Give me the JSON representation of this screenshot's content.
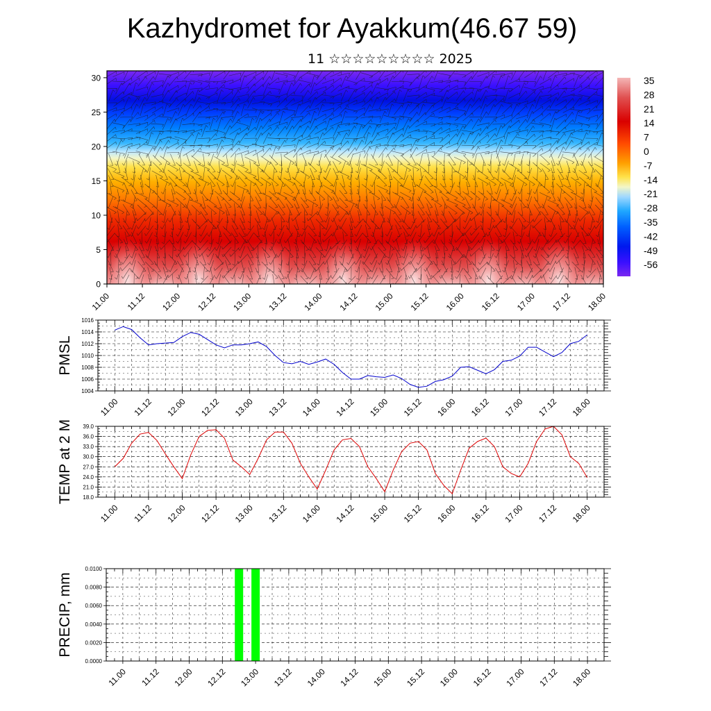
{
  "header": {
    "title": "Kazhydromet for Ayakkum(46.67 59)",
    "subtitle": "11 ☆☆☆☆☆☆☆☆☆ 2025"
  },
  "colors": {
    "pmsl_line": "#0000cc",
    "temp_line": "#dd0000",
    "precip_bar": "#00ff00",
    "panel_border": "#000000",
    "grid": "#000000"
  },
  "chart_data": [
    {
      "id": "cross-section",
      "type": "heatmap",
      "title": "",
      "xlabel": "",
      "ylabel": "",
      "x_ticks": [
        "11.00",
        "11.12",
        "12.00",
        "12.12",
        "13.00",
        "13.12",
        "14.00",
        "14.12",
        "15.00",
        "15.12",
        "16.00",
        "16.12",
        "17.00",
        "17.12",
        "18.00"
      ],
      "y_ticks": [
        0,
        5,
        10,
        15,
        20,
        25,
        30
      ],
      "ylim": [
        0,
        31
      ],
      "colorbar_labels": [
        "35",
        "28",
        "21",
        "14",
        "7",
        "0",
        "-7",
        "-14",
        "-21",
        "-28",
        "-35",
        "-42",
        "-49",
        "-56"
      ],
      "colorbar_range": [
        -60,
        38
      ],
      "overlay": "wind barbs"
    },
    {
      "id": "pmsl",
      "type": "line",
      "ylabel": "PMSL",
      "x_ticks": [
        "11.00",
        "11.12",
        "12.00",
        "12.12",
        "13.00",
        "13.12",
        "14.00",
        "14.12",
        "15.00",
        "15.12",
        "16.00",
        "16.12",
        "17.00",
        "17.12",
        "18.00"
      ],
      "y_ticks": [
        "1004",
        "1006",
        "1008",
        "1010",
        "1012",
        "1014",
        "1016"
      ],
      "ylim": [
        1004,
        1016
      ],
      "step_hours": 3,
      "values": [
        1014.3,
        1014.9,
        1014.4,
        1013.0,
        1011.8,
        1012.0,
        1012.1,
        1012.2,
        1013.2,
        1013.9,
        1013.6,
        1012.7,
        1011.8,
        1011.3,
        1011.8,
        1011.8,
        1012.0,
        1012.3,
        1011.5,
        1010.0,
        1008.8,
        1008.6,
        1009.0,
        1008.5,
        1008.9,
        1009.4,
        1008.5,
        1007.1,
        1006.0,
        1006.0,
        1006.6,
        1006.4,
        1006.3,
        1006.7,
        1006.1,
        1005.1,
        1004.6,
        1004.8,
        1005.6,
        1005.9,
        1006.5,
        1008.0,
        1008.1,
        1007.5,
        1006.9,
        1007.6,
        1009.0,
        1009.2,
        1009.9,
        1011.4,
        1011.4,
        1010.6,
        1009.8,
        1010.5,
        1012.0,
        1012.4,
        1013.5
      ]
    },
    {
      "id": "temp",
      "type": "line",
      "ylabel": "TEMP at 2 M",
      "x_ticks": [
        "11.00",
        "11.12",
        "12.00",
        "12.12",
        "13.00",
        "13.12",
        "14.00",
        "14.12",
        "15.00",
        "15.12",
        "16.00",
        "16.12",
        "17.00",
        "17.12",
        "18.00"
      ],
      "y_ticks": [
        "18.0",
        "21.0",
        "24.0",
        "27.0",
        "30.0",
        "33.0",
        "36.0",
        "39.0"
      ],
      "ylim": [
        18,
        39
      ],
      "step_hours": 3,
      "values": [
        27.0,
        29.5,
        34.0,
        36.7,
        37.2,
        34.8,
        30.8,
        27.0,
        23.5,
        30.5,
        36.0,
        37.8,
        38.0,
        35.5,
        29.0,
        27.0,
        24.7,
        29.5,
        35.0,
        37.3,
        37.3,
        34.0,
        28.0,
        24.0,
        20.4,
        26.0,
        32.0,
        35.0,
        35.4,
        33.0,
        27.0,
        23.5,
        19.6,
        26.0,
        31.5,
        34.0,
        34.5,
        32.0,
        25.0,
        21.5,
        19.0,
        26.0,
        32.5,
        34.5,
        35.5,
        33.0,
        27.0,
        25.0,
        24.0,
        28.0,
        34.5,
        38.2,
        39.0,
        36.5,
        30.0,
        28.0,
        23.8
      ]
    },
    {
      "id": "precip",
      "type": "bar",
      "ylabel": "PRECIP, mm",
      "x_ticks": [
        "11.00",
        "11.12",
        "12.00",
        "12.12",
        "13.00",
        "13.12",
        "14.00",
        "14.12",
        "15.00",
        "15.12",
        "16.00",
        "16.12",
        "17.00",
        "17.12",
        "18.00"
      ],
      "y_ticks": [
        "0.0000",
        "0.0020",
        "0.0040",
        "0.0060",
        "0.0080",
        "0.0100"
      ],
      "ylim": [
        0,
        0.01
      ],
      "bars": [
        {
          "x_hour": 42,
          "value": 0.01
        },
        {
          "x_hour": 48,
          "value": 0.01
        }
      ]
    }
  ]
}
